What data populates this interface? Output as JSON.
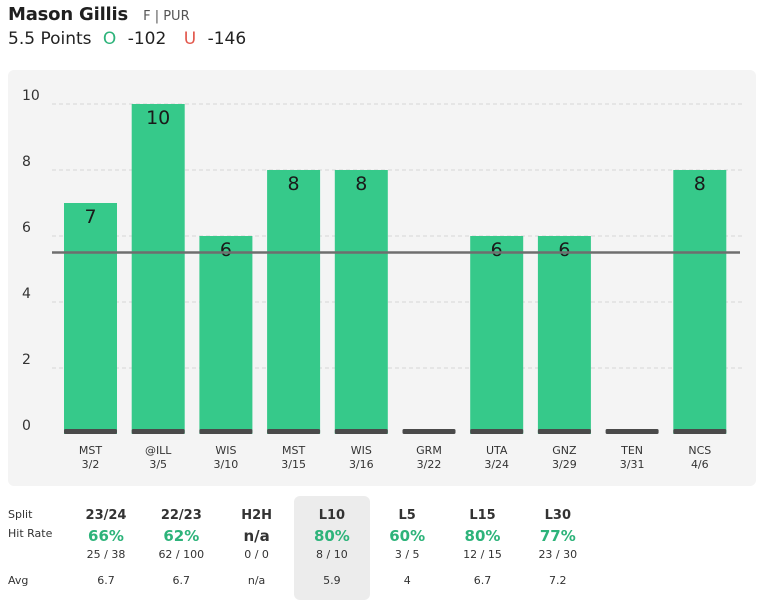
{
  "player": {
    "name": "Mason Gillis",
    "team": "F | PUR",
    "line": "5.5 Points",
    "over_symbol": "O",
    "over_odds": "-102",
    "under_symbol": "U",
    "under_odds": "-146"
  },
  "colors": {
    "bar": "#36c98a",
    "bar_base": "#4a4a4a",
    "line": "#6e6e6e",
    "over": "#2db37a",
    "under": "#e2574c"
  },
  "chart_data": {
    "type": "bar",
    "categories": [
      "MST 3/2",
      "@ILL 3/5",
      "WIS 3/10",
      "MST 3/15",
      "WIS 3/16",
      "GRM 3/22",
      "UTA 3/24",
      "GNZ 3/29",
      "TEN 3/31",
      "NCS 4/6"
    ],
    "opponents": [
      "MST",
      "@ILL",
      "WIS",
      "MST",
      "WIS",
      "GRM",
      "UTA",
      "GNZ",
      "TEN",
      "NCS"
    ],
    "dates": [
      "3/2",
      "3/5",
      "3/10",
      "3/15",
      "3/16",
      "3/22",
      "3/24",
      "3/29",
      "3/31",
      "4/6"
    ],
    "values": [
      7,
      10,
      6,
      8,
      8,
      0,
      6,
      6,
      0,
      8
    ],
    "value_labels": [
      "7",
      "10",
      "6",
      "8",
      "8",
      "",
      "6",
      "6",
      "",
      "8"
    ],
    "prop_line": 5.5,
    "ylim": [
      0,
      10
    ],
    "yticks": [
      0,
      2,
      4,
      6,
      8,
      10
    ],
    "grid": true,
    "title": "",
    "xlabel": "",
    "ylabel": ""
  },
  "stats": {
    "row_labels": {
      "split": "Split",
      "hit_rate": "Hit Rate",
      "avg": "Avg"
    },
    "columns": [
      {
        "header": "23/24",
        "pct": "66%",
        "frac": "25 / 38",
        "avg": "6.7",
        "highlight": false
      },
      {
        "header": "22/23",
        "pct": "62%",
        "frac": "62 / 100",
        "avg": "6.7",
        "highlight": false
      },
      {
        "header": "H2H",
        "pct": "n/a",
        "frac": "0 / 0",
        "avg": "n/a",
        "highlight": false
      },
      {
        "header": "L10",
        "pct": "80%",
        "frac": "8 / 10",
        "avg": "5.9",
        "highlight": true
      },
      {
        "header": "L5",
        "pct": "60%",
        "frac": "3 / 5",
        "avg": "4",
        "highlight": false
      },
      {
        "header": "L15",
        "pct": "80%",
        "frac": "12 / 15",
        "avg": "6.7",
        "highlight": false
      },
      {
        "header": "L30",
        "pct": "77%",
        "frac": "23 / 30",
        "avg": "7.2",
        "highlight": false
      }
    ]
  }
}
